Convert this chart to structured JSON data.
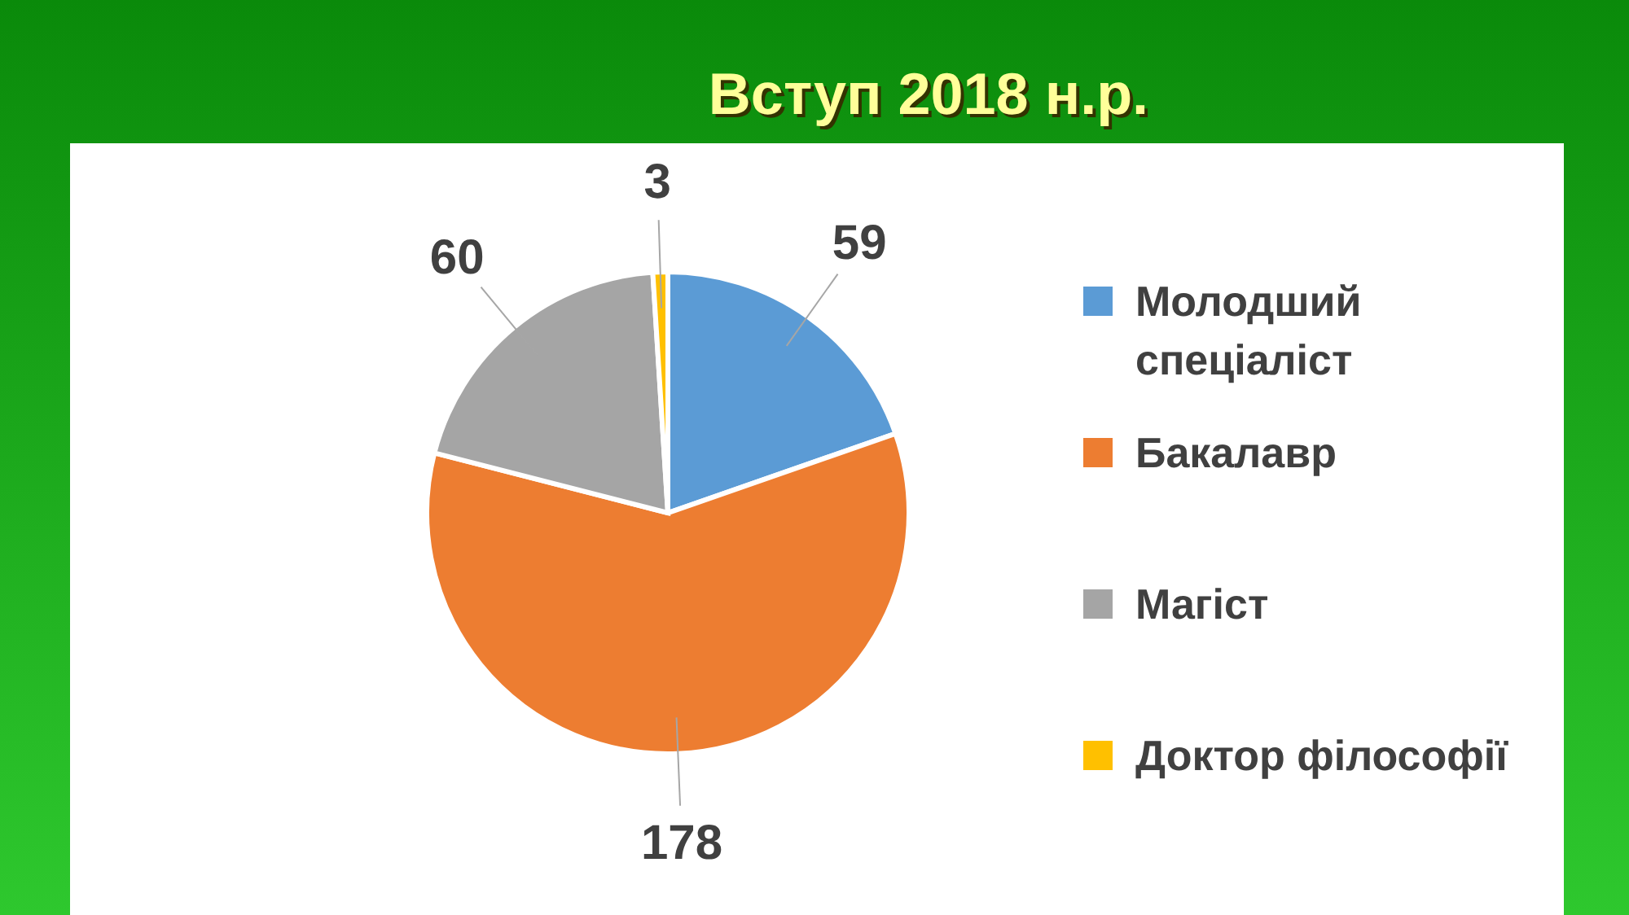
{
  "chart_data": {
    "type": "pie",
    "title": "Вступ 2018 н.р.",
    "categories": [
      "Молодший спеціаліст",
      "Бакалавр",
      "Магіст",
      "Доктор філософії"
    ],
    "values": [
      59,
      178,
      60,
      3
    ],
    "colors": [
      "#5b9bd5",
      "#ed7d31",
      "#a5a5a5",
      "#ffc000"
    ],
    "data_labels": true,
    "legend": "right"
  }
}
